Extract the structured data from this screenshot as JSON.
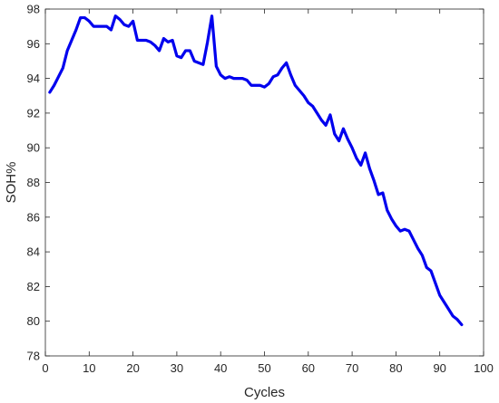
{
  "chart_data": {
    "type": "line",
    "title": "",
    "xlabel": "Cycles",
    "ylabel": "SOH%",
    "xlim": [
      0,
      100
    ],
    "ylim": [
      78,
      98
    ],
    "xticks": [
      0,
      10,
      20,
      30,
      40,
      50,
      60,
      70,
      80,
      90,
      100
    ],
    "yticks": [
      78,
      80,
      82,
      84,
      86,
      88,
      90,
      92,
      94,
      96,
      98
    ],
    "grid": false,
    "legend": "none",
    "series": [
      {
        "color": "#0000ee",
        "x": [
          1,
          2,
          3,
          4,
          5,
          6,
          7,
          8,
          9,
          10,
          11,
          12,
          13,
          14,
          15,
          16,
          17,
          18,
          19,
          20,
          21,
          22,
          23,
          24,
          25,
          26,
          27,
          28,
          29,
          30,
          31,
          32,
          33,
          34,
          35,
          36,
          37,
          38,
          39,
          40,
          41,
          42,
          43,
          44,
          45,
          46,
          47,
          48,
          49,
          50,
          51,
          52,
          53,
          54,
          55,
          56,
          57,
          58,
          59,
          60,
          61,
          62,
          63,
          64,
          65,
          66,
          67,
          68,
          69,
          70,
          71,
          72,
          73,
          74,
          75,
          76,
          77,
          78,
          79,
          80,
          81,
          82,
          83,
          84,
          85,
          86,
          87,
          88,
          89,
          90,
          91,
          92,
          93,
          94,
          95
        ],
        "y": [
          93.2,
          93.6,
          94.1,
          94.6,
          95.6,
          96.2,
          96.8,
          97.5,
          97.5,
          97.3,
          97.0,
          97.0,
          97.0,
          97.0,
          96.8,
          97.6,
          97.4,
          97.1,
          97.0,
          97.3,
          96.2,
          96.2,
          96.2,
          96.1,
          95.9,
          95.6,
          96.3,
          96.1,
          96.2,
          95.3,
          95.2,
          95.6,
          95.6,
          95.0,
          94.9,
          94.8,
          96.1,
          97.6,
          94.7,
          94.2,
          94.0,
          94.1,
          94.0,
          94.0,
          94.0,
          93.9,
          93.6,
          93.6,
          93.6,
          93.5,
          93.7,
          94.1,
          94.2,
          94.6,
          94.9,
          94.2,
          93.6,
          93.3,
          93.0,
          92.6,
          92.4,
          92.0,
          91.6,
          91.3,
          91.9,
          90.8,
          90.4,
          91.1,
          90.5,
          90.0,
          89.4,
          89.0,
          89.7,
          88.8,
          88.1,
          87.3,
          87.4,
          86.4,
          85.9,
          85.5,
          85.2,
          85.3,
          85.2,
          84.7,
          84.2,
          83.8,
          83.1,
          82.9,
          82.2,
          81.5,
          81.1,
          80.7,
          80.3,
          80.1,
          79.8
        ]
      }
    ]
  }
}
